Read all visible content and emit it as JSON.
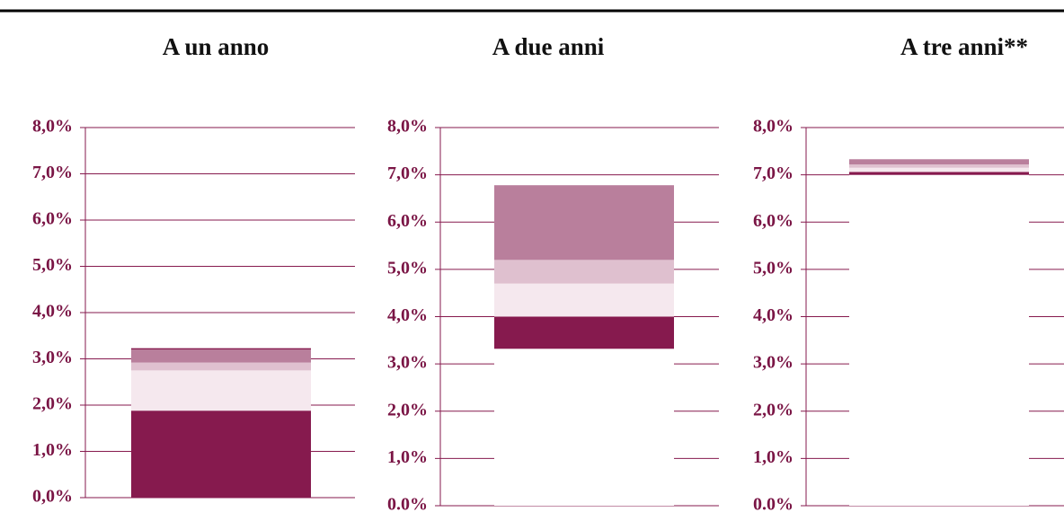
{
  "chart_data": [
    {
      "type": "stacked-bar",
      "title": "A un anno",
      "ylim": [
        0,
        8
      ],
      "yticks": [
        {
          "value": 0,
          "label": "0,0%"
        },
        {
          "value": 1,
          "label": "1,0%"
        },
        {
          "value": 2,
          "label": "2,0%"
        },
        {
          "value": 3,
          "label": "3,0%"
        },
        {
          "value": 4,
          "label": "4,0%"
        },
        {
          "value": 5,
          "label": "5,0%"
        },
        {
          "value": 6,
          "label": "6,0%"
        },
        {
          "value": 7,
          "label": "7,0%"
        },
        {
          "value": 8,
          "label": "8,0%"
        }
      ],
      "grid": true,
      "series": [
        {
          "color": "#861a4e",
          "values": [
            1.88
          ]
        },
        {
          "color": "#f5e8ee",
          "values": [
            0.87
          ]
        },
        {
          "color": "#dfc0cf",
          "values": [
            0.17
          ]
        },
        {
          "color": "#b97f9c",
          "values": [
            0.28
          ]
        },
        {
          "color": "#861a4e",
          "values": [
            0.03
          ]
        }
      ]
    },
    {
      "type": "stacked-bar",
      "title": "A due anni",
      "ylim": [
        0,
        8
      ],
      "yticks": [
        {
          "value": 0,
          "label": "0.0%"
        },
        {
          "value": 1,
          "label": "1,0%"
        },
        {
          "value": 2,
          "label": "2,0%"
        },
        {
          "value": 3,
          "label": "3,0%"
        },
        {
          "value": 4,
          "label": "4,0%"
        },
        {
          "value": 5,
          "label": "5,0%"
        },
        {
          "value": 6,
          "label": "6,0%"
        },
        {
          "value": 7,
          "label": "7,0%"
        },
        {
          "value": 8,
          "label": "8,0%"
        }
      ],
      "grid": true,
      "series": [
        {
          "color": "#ffffff",
          "values": [
            3.32
          ]
        },
        {
          "color": "#861a4e",
          "values": [
            0.68
          ]
        },
        {
          "color": "#f5e8ee",
          "values": [
            0.7
          ]
        },
        {
          "color": "#dfc0cf",
          "values": [
            0.5
          ]
        },
        {
          "color": "#b97f9c",
          "values": [
            1.58
          ]
        }
      ]
    },
    {
      "type": "stacked-bar",
      "title": "A tre anni**",
      "ylim": [
        0,
        8
      ],
      "yticks": [
        {
          "value": 0,
          "label": "0.0%"
        },
        {
          "value": 1,
          "label": "1,0%"
        },
        {
          "value": 2,
          "label": "2,0%"
        },
        {
          "value": 3,
          "label": "3,0%"
        },
        {
          "value": 4,
          "label": "4,0%"
        },
        {
          "value": 5,
          "label": "5,0%"
        },
        {
          "value": 6,
          "label": "6,0%"
        },
        {
          "value": 7,
          "label": "7,0%"
        },
        {
          "value": 8,
          "label": "8,0%"
        }
      ],
      "grid": true,
      "series": [
        {
          "color": "#ffffff",
          "values": [
            7.0
          ]
        },
        {
          "color": "#861a4e",
          "values": [
            0.06
          ]
        },
        {
          "color": "#f5e8ee",
          "values": [
            0.09
          ]
        },
        {
          "color": "#dfc0cf",
          "values": [
            0.07
          ]
        },
        {
          "color": "#b97f9c",
          "values": [
            0.11
          ]
        }
      ]
    }
  ]
}
